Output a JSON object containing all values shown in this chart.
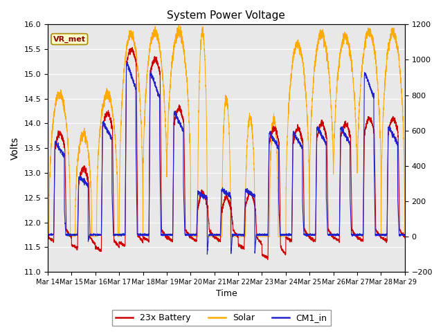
{
  "title": "System Power Voltage",
  "ylabel_left": "Volts",
  "xlabel": "Time",
  "ylim_left": [
    11.0,
    16.0
  ],
  "ylim_right": [
    -200,
    1200
  ],
  "yticks_left": [
    11.0,
    11.5,
    12.0,
    12.5,
    13.0,
    13.5,
    14.0,
    14.5,
    15.0,
    15.5,
    16.0
  ],
  "yticks_right": [
    -200,
    0,
    200,
    400,
    600,
    800,
    1000,
    1200
  ],
  "xtick_labels": [
    "Mar 14",
    "Mar 15",
    "Mar 16",
    "Mar 17",
    "Mar 18",
    "Mar 19",
    "Mar 20",
    "Mar 21",
    "Mar 22",
    "Mar 23",
    "Mar 24",
    "Mar 25",
    "Mar 26",
    "Mar 27",
    "Mar 28",
    "Mar 29"
  ],
  "vr_met_label": "VR_met",
  "legend_entries": [
    "23x Battery",
    "Solar",
    "CM1_in"
  ],
  "colors": {
    "battery": "#cc0000",
    "solar": "#ffaa00",
    "cm1": "#2222cc",
    "fig_bg": "#ffffff",
    "plot_bg": "#e8e8e8",
    "grid": "#ffffff"
  },
  "figsize": [
    6.4,
    4.8
  ],
  "dpi": 100,
  "n_days": 15,
  "pts_per_day": 288,
  "solar_peaks": [
    14.6,
    13.8,
    14.6,
    15.8,
    15.85,
    15.85,
    15.85,
    14.5,
    14.1,
    14.1,
    15.6,
    15.8,
    15.75,
    15.85,
    15.85
  ],
  "solar_widths": [
    0.45,
    0.35,
    0.45,
    0.5,
    0.52,
    0.52,
    0.2,
    0.18,
    0.2,
    0.18,
    0.5,
    0.52,
    0.52,
    0.52,
    0.5
  ],
  "battery_night": [
    11.7,
    11.55,
    11.5,
    11.6,
    11.7,
    11.7,
    11.7,
    11.7,
    11.55,
    11.35,
    11.7,
    11.7,
    11.7,
    11.7,
    11.7
  ],
  "battery_peaks": [
    13.5,
    12.8,
    13.9,
    15.2,
    15.0,
    14.0,
    12.3,
    12.2,
    12.3,
    13.6,
    13.6,
    13.7,
    13.7,
    13.8,
    13.8
  ],
  "cm1_night": [
    11.75,
    11.75,
    11.75,
    11.75,
    11.75,
    11.75,
    11.75,
    11.75,
    11.75,
    11.75,
    11.75,
    11.75,
    11.75,
    11.75,
    11.75
  ],
  "cm1_peaks": [
    13.6,
    12.9,
    14.0,
    15.2,
    15.0,
    14.2,
    12.6,
    12.65,
    12.65,
    13.8,
    13.8,
    13.9,
    13.9,
    15.0,
    13.9
  ]
}
